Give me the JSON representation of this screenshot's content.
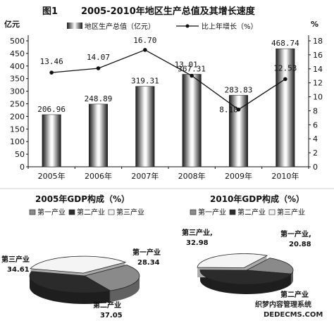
{
  "figure": {
    "label": "图1",
    "title": "2005-2010年地区生产总值及其增长速度"
  },
  "watermark": {
    "line1": "织梦内容管理系统",
    "line2": "DEDECMS.COM"
  },
  "chart_data": [
    {
      "type": "bar",
      "y_unit": "亿元",
      "y2_unit": "%",
      "categories": [
        "2005年",
        "2006年",
        "2007年",
        "2008年",
        "2009年",
        "2010年"
      ],
      "ylim": [
        0,
        500
      ],
      "yticks": [
        0,
        50,
        100,
        150,
        200,
        250,
        300,
        350,
        400,
        450,
        500
      ],
      "y2lim": [
        0,
        18
      ],
      "y2ticks": [
        0,
        2,
        4,
        6,
        8,
        10,
        12,
        14,
        16,
        18
      ],
      "legend_position": "top",
      "series": [
        {
          "name": "地区生产总值（亿元）",
          "type": "bar",
          "axis": "left",
          "values": [
            206.96,
            248.89,
            319.31,
            367.31,
            283.83,
            468.74
          ],
          "labels": [
            "206.96",
            "248.89",
            "319.31",
            "367.31",
            "283.83",
            "468.74"
          ]
        },
        {
          "name": "比上年增长（%）",
          "type": "line",
          "axis": "right",
          "values": [
            13.46,
            14.07,
            16.7,
            13.01,
            8.18,
            12.53
          ],
          "labels": [
            "13.46",
            "14.07",
            "16.70",
            "13.01",
            "8.18",
            "12.53"
          ]
        }
      ],
      "grid": false
    },
    {
      "type": "pie",
      "title": "2005年GDP构成（%）",
      "legend": [
        "第一产业",
        "第二产业",
        "第三产业"
      ],
      "categories": [
        "第一产业",
        "第二产业",
        "第三产业"
      ],
      "values": [
        28.34,
        37.05,
        34.61
      ],
      "labels": [
        "28.34",
        "37.05",
        "34.61"
      ],
      "colors": [
        "#8a8a8a",
        "#2b2b2b",
        "#f4f4f4"
      ]
    },
    {
      "type": "pie",
      "title": "2010年GDP构成（%）",
      "legend": [
        "第一产业",
        "第二产业",
        "第三产业"
      ],
      "categories": [
        "第一产业",
        "第二产业",
        "第三产业"
      ],
      "values": [
        20.88,
        46.14,
        32.98
      ],
      "labels": [
        "20.88",
        "",
        "32.98"
      ],
      "slice_names": [
        "第一产业,",
        "第二产业",
        "第三产业,"
      ],
      "colors": [
        "#8a8a8a",
        "#2b2b2b",
        "#f4f4f4"
      ]
    }
  ]
}
